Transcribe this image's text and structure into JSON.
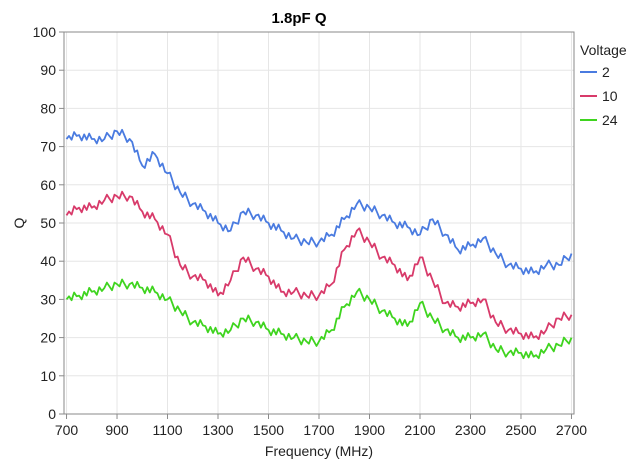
{
  "chart_data": {
    "type": "line",
    "title": "1.8pF Q",
    "xlabel": "Frequency (MHz)",
    "ylabel": "Q",
    "xlim": [
      690,
      2710
    ],
    "ylim": [
      0,
      100
    ],
    "xticks": [
      700,
      900,
      1100,
      1300,
      1500,
      1700,
      1900,
      2100,
      2300,
      2500,
      2700
    ],
    "yticks": [
      0,
      10,
      20,
      30,
      40,
      50,
      60,
      70,
      80,
      90,
      100
    ],
    "grid": true,
    "legend": {
      "title": "Voltage",
      "placement": "right"
    },
    "x": [
      700,
      750,
      800,
      850,
      900,
      950,
      1000,
      1050,
      1100,
      1150,
      1200,
      1250,
      1300,
      1350,
      1400,
      1450,
      1500,
      1550,
      1600,
      1650,
      1700,
      1750,
      1800,
      1850,
      1900,
      1950,
      2000,
      2050,
      2100,
      2150,
      2200,
      2250,
      2300,
      2350,
      2400,
      2450,
      2500,
      2550,
      2600,
      2650,
      2700
    ],
    "series": [
      {
        "name": "2",
        "color": "#4a7be0",
        "values": [
          72,
          73,
          72,
          72,
          74,
          72,
          65,
          68,
          63,
          58,
          55,
          53,
          50,
          48,
          53,
          52,
          50,
          48,
          46,
          45,
          45,
          47,
          51,
          55,
          54,
          52,
          50,
          49,
          47,
          51,
          47,
          43,
          44,
          46,
          42,
          39,
          38,
          37,
          39,
          39,
          42
        ]
      },
      {
        "name": "10",
        "color": "#d83a6a",
        "values": [
          52,
          54,
          54,
          56,
          57,
          57,
          53,
          51,
          47,
          39,
          36,
          35,
          31,
          35,
          41,
          38,
          36,
          32,
          32,
          31,
          31,
          34,
          43,
          48,
          45,
          41,
          39,
          35,
          41,
          35,
          29,
          28,
          29,
          30,
          24,
          22,
          21,
          20,
          22,
          25,
          26
        ]
      },
      {
        "name": "24",
        "color": "#3fd41f",
        "values": [
          30,
          31,
          32,
          33,
          34,
          34,
          33,
          32,
          30,
          27,
          24,
          23,
          21,
          22,
          25,
          24,
          22,
          21,
          20,
          19,
          19,
          22,
          28,
          32,
          30,
          27,
          25,
          23,
          29,
          25,
          22,
          20,
          20,
          21,
          17,
          16,
          16,
          15,
          17,
          18,
          20
        ]
      }
    ]
  }
}
